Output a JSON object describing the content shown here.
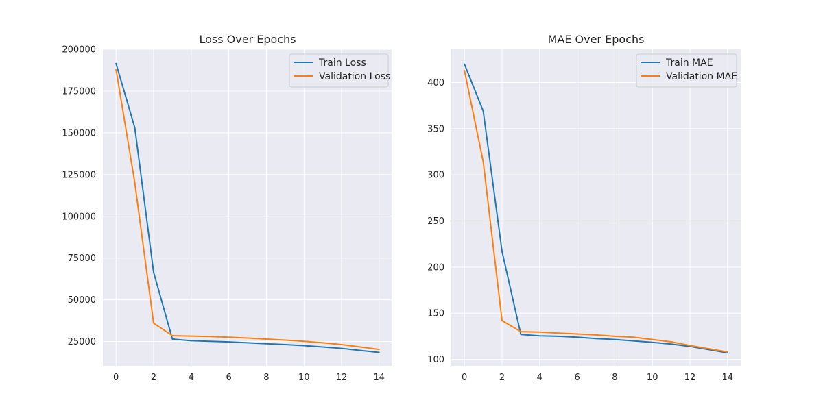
{
  "chart_data": [
    {
      "type": "line",
      "title": "Loss Over Epochs",
      "xlabel": "",
      "ylabel": "",
      "xlim": [
        -0.7,
        14.7
      ],
      "ylim": [
        10500,
        200000
      ],
      "xticks": [
        0,
        2,
        4,
        6,
        8,
        10,
        12,
        14
      ],
      "yticks": [
        25000,
        50000,
        75000,
        100000,
        125000,
        150000,
        175000,
        200000
      ],
      "grid": true,
      "legend_position": "top-right",
      "x": [
        0,
        1,
        2,
        3,
        4,
        5,
        6,
        7,
        8,
        9,
        10,
        11,
        12,
        13,
        14
      ],
      "series": [
        {
          "name": "Train Loss",
          "color": "#1f77b4",
          "values": [
            191500,
            153000,
            66500,
            26500,
            25500,
            25200,
            24800,
            24300,
            23700,
            23200,
            22600,
            21800,
            20900,
            19700,
            18500
          ]
        },
        {
          "name": "Validation Loss",
          "color": "#ff7f0e",
          "values": [
            188000,
            120000,
            36000,
            28500,
            28300,
            28000,
            27600,
            27100,
            26500,
            25900,
            25200,
            24300,
            23200,
            21800,
            20300
          ]
        }
      ]
    },
    {
      "type": "line",
      "title": "MAE Over Epochs",
      "xlabel": "",
      "ylabel": "",
      "xlim": [
        -0.7,
        14.7
      ],
      "ylim": [
        93,
        436
      ],
      "xticks": [
        0,
        2,
        4,
        6,
        8,
        10,
        12,
        14
      ],
      "yticks": [
        100,
        150,
        200,
        250,
        300,
        350,
        400
      ],
      "grid": true,
      "legend_position": "top-right",
      "x": [
        0,
        1,
        2,
        3,
        4,
        5,
        6,
        7,
        8,
        9,
        10,
        11,
        12,
        13,
        14
      ],
      "series": [
        {
          "name": "Train MAE",
          "color": "#1f77b4",
          "values": [
            420,
            369,
            217,
            127,
            125.5,
            125,
            124,
            122.5,
            121.5,
            120,
            118.5,
            116.5,
            114,
            110.5,
            107
          ]
        },
        {
          "name": "Validation MAE",
          "color": "#ff7f0e",
          "values": [
            413,
            314,
            142,
            130,
            129.5,
            128.5,
            127.5,
            126.5,
            125,
            124,
            121.5,
            119,
            115,
            111.5,
            108
          ]
        }
      ]
    }
  ]
}
